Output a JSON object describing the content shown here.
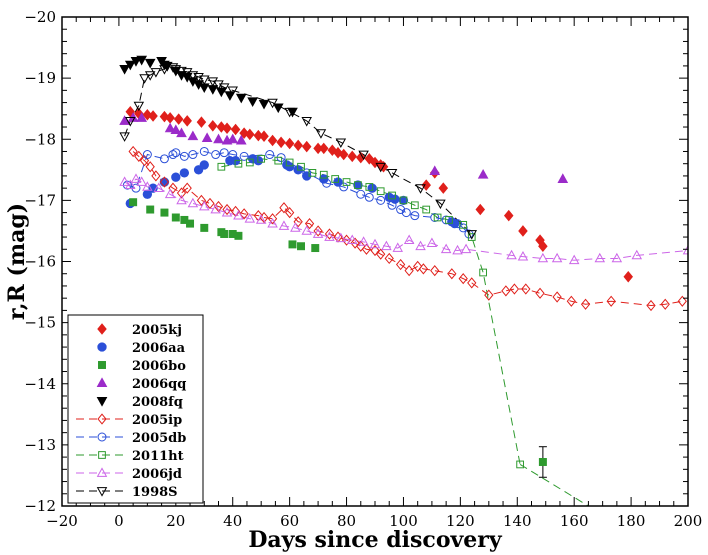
{
  "chart_data": {
    "type": "scatter",
    "title": "",
    "xlabel": "Days since discovery",
    "ylabel": "r,R (mag)",
    "xlim": [
      -20,
      200
    ],
    "ylim": [
      -20,
      -12
    ],
    "y_inverted": true,
    "x_major_ticks": [
      -20,
      0,
      20,
      40,
      60,
      80,
      100,
      120,
      140,
      160,
      180,
      200
    ],
    "y_major_ticks": [
      -20,
      -19,
      -18,
      -17,
      -16,
      -15,
      -14,
      -13,
      -12
    ],
    "x_tick_labels": [
      "−20",
      "0",
      "20",
      "40",
      "60",
      "80",
      "100",
      "120",
      "140",
      "160",
      "180",
      "200"
    ],
    "y_tick_labels": [
      "−20",
      "−19",
      "−18",
      "−17",
      "−16",
      "−15",
      "−14",
      "−13",
      "−12"
    ],
    "legend_position": "bottom-left",
    "series": [
      {
        "name": "2005kj",
        "marker": "diamond",
        "filled": true,
        "color": "#e0201b",
        "line": false,
        "x": [
          4,
          7,
          10,
          12,
          16,
          18,
          21,
          24,
          29,
          33,
          36,
          38,
          41,
          44,
          46,
          49,
          51,
          54,
          57,
          60,
          63,
          66,
          70,
          72,
          75,
          77,
          79,
          82,
          85,
          88,
          90,
          92,
          93,
          108,
          111,
          114,
          127,
          137,
          142,
          148,
          149,
          179
        ],
        "y": [
          -18.45,
          -18.42,
          -18.4,
          -18.38,
          -18.37,
          -18.35,
          -18.33,
          -18.3,
          -18.28,
          -18.22,
          -18.2,
          -18.18,
          -18.16,
          -18.1,
          -18.08,
          -18.06,
          -18.05,
          -17.98,
          -17.95,
          -17.93,
          -17.9,
          -17.88,
          -17.85,
          -17.85,
          -17.82,
          -17.78,
          -17.75,
          -17.72,
          -17.7,
          -17.68,
          -17.62,
          -17.58,
          -17.55,
          -17.25,
          -17.45,
          -17.2,
          -16.85,
          -16.75,
          -16.5,
          -16.35,
          -16.25,
          -15.75
        ]
      },
      {
        "name": "2006aa",
        "marker": "circle",
        "filled": true,
        "color": "#2b4fd8",
        "line": false,
        "x": [
          4,
          10,
          12,
          16,
          20,
          23,
          28,
          30,
          39,
          41,
          47,
          49,
          59,
          60,
          63,
          66,
          72,
          77,
          84,
          89,
          95,
          97,
          100,
          117,
          118
        ],
        "y": [
          -16.95,
          -17.1,
          -17.2,
          -17.3,
          -17.38,
          -17.45,
          -17.5,
          -17.58,
          -17.65,
          -17.65,
          -17.68,
          -17.65,
          -17.58,
          -17.55,
          -17.5,
          -17.4,
          -17.35,
          -17.3,
          -17.25,
          -17.2,
          -17.05,
          -17.02,
          -17.0,
          -16.65,
          -16.62
        ]
      },
      {
        "name": "2006bo",
        "marker": "square",
        "filled": true,
        "color": "#2e9a2e",
        "line": false,
        "x": [
          5,
          11,
          16,
          20,
          23,
          25,
          30,
          36,
          37,
          40,
          42,
          61,
          64,
          69,
          149
        ],
        "y": [
          -16.97,
          -16.85,
          -16.8,
          -16.72,
          -16.68,
          -16.62,
          -16.55,
          -16.48,
          -16.45,
          -16.45,
          -16.42,
          -16.28,
          -16.25,
          -16.22,
          -12.72
        ]
      },
      {
        "name": "2006qq",
        "marker": "triangle-up",
        "filled": true,
        "color": "#9b2bc9",
        "line": false,
        "x": [
          2,
          5,
          8,
          18,
          20,
          22,
          26,
          31,
          35,
          38,
          40,
          43,
          111,
          128,
          156
        ],
        "y": [
          -18.3,
          -18.35,
          -18.35,
          -18.18,
          -18.15,
          -18.1,
          -18.05,
          -18.02,
          -18.0,
          -17.98,
          -18.0,
          -17.98,
          -17.48,
          -17.42,
          -17.35
        ]
      },
      {
        "name": "2008fq",
        "marker": "triangle-down",
        "filled": true,
        "color": "#000000",
        "line": false,
        "x": [
          2,
          4,
          6,
          8,
          11,
          15,
          16,
          17,
          20,
          22,
          24,
          26,
          28,
          30,
          33,
          36,
          39,
          43,
          47,
          51,
          56,
          61
        ],
        "y": [
          -19.15,
          -19.22,
          -19.28,
          -19.3,
          -19.25,
          -19.28,
          -19.22,
          -19.2,
          -19.12,
          -19.05,
          -19.02,
          -18.95,
          -18.9,
          -18.85,
          -18.82,
          -18.78,
          -18.72,
          -18.68,
          -18.62,
          -18.58,
          -18.52,
          -18.45
        ]
      },
      {
        "name": "2005ip",
        "marker": "diamond",
        "filled": false,
        "color": "#e0201b",
        "line": true,
        "dash": "8,5",
        "x": [
          5,
          7,
          9,
          11,
          13,
          16,
          19,
          22,
          24,
          29,
          32,
          35,
          38,
          41,
          44,
          49,
          51,
          54,
          58,
          60,
          63,
          67,
          70,
          74,
          77,
          80,
          83,
          85,
          87,
          90,
          92,
          95,
          99,
          102,
          105,
          107,
          111,
          117,
          121,
          124,
          130,
          136,
          139,
          143,
          148,
          154,
          159,
          164,
          173,
          187,
          192,
          198
        ],
        "y": [
          -17.8,
          -17.72,
          -17.65,
          -17.55,
          -17.4,
          -17.3,
          -17.2,
          -17.12,
          -17.2,
          -17.0,
          -16.95,
          -16.9,
          -16.85,
          -16.82,
          -16.78,
          -16.75,
          -16.72,
          -16.7,
          -16.88,
          -16.8,
          -16.65,
          -16.62,
          -16.5,
          -16.45,
          -16.4,
          -16.35,
          -16.3,
          -16.25,
          -16.2,
          -16.18,
          -16.12,
          -16.05,
          -15.95,
          -15.85,
          -15.92,
          -15.88,
          -15.85,
          -15.8,
          -15.72,
          -15.65,
          -15.45,
          -15.52,
          -15.55,
          -15.55,
          -15.48,
          -15.42,
          -15.35,
          -15.3,
          -15.35,
          -15.28,
          -15.3,
          -15.35
        ]
      },
      {
        "name": "2005db",
        "marker": "circle",
        "filled": false,
        "color": "#2b4fd8",
        "line": true,
        "dash": "8,5",
        "x": [
          3,
          6,
          10,
          16,
          19,
          20,
          23,
          26,
          30,
          34,
          37,
          40,
          44,
          53,
          57,
          66,
          73,
          79,
          85,
          88,
          92,
          96,
          99,
          101,
          104,
          111,
          115,
          119,
          121,
          123
        ],
        "y": [
          -17.25,
          -17.2,
          -17.75,
          -17.68,
          -17.75,
          -17.78,
          -17.72,
          -17.75,
          -17.8,
          -17.75,
          -17.78,
          -17.75,
          -17.72,
          -17.75,
          -17.7,
          -17.45,
          -17.28,
          -17.22,
          -17.1,
          -17.05,
          -17.0,
          -16.92,
          -16.85,
          -16.8,
          -16.75,
          -16.72,
          -16.68,
          -16.62,
          -16.55,
          -16.45
        ]
      },
      {
        "name": "2011ht",
        "marker": "square",
        "filled": false,
        "color": "#2e9a2e",
        "line": true,
        "dash": "8,5",
        "x": [
          36,
          42,
          46,
          50,
          56,
          60,
          64,
          68,
          72,
          76,
          80,
          84,
          88,
          92,
          96,
          100,
          104,
          108,
          112,
          116,
          121,
          124,
          128,
          141
        ],
        "y": [
          -17.55,
          -17.6,
          -17.62,
          -17.68,
          -17.65,
          -17.62,
          -17.55,
          -17.45,
          -17.42,
          -17.35,
          -17.3,
          -17.25,
          -17.22,
          -17.15,
          -17.08,
          -17.0,
          -16.92,
          -16.85,
          -16.72,
          -16.68,
          -16.6,
          -16.4,
          -15.82,
          -12.68
        ],
        "line_extension": {
          "x": [
            141,
            165
          ],
          "y": [
            -12.68,
            -12.0
          ]
        }
      },
      {
        "name": "2006jd",
        "marker": "triangle-up",
        "filled": false,
        "color": "#cc66e8",
        "line": true,
        "dash": "8,5",
        "x": [
          2,
          4,
          6,
          8,
          10,
          14,
          18,
          22,
          26,
          30,
          34,
          38,
          42,
          46,
          50,
          54,
          58,
          62,
          66,
          70,
          74,
          78,
          82,
          86,
          90,
          94,
          98,
          102,
          106,
          110,
          115,
          119,
          122,
          138,
          142,
          149,
          154,
          160,
          169,
          175,
          182,
          200
        ],
        "y": [
          -17.3,
          -17.25,
          -17.35,
          -17.3,
          -17.22,
          -17.2,
          -17.1,
          -17.0,
          -16.95,
          -16.9,
          -16.85,
          -16.8,
          -16.75,
          -16.7,
          -16.68,
          -16.62,
          -16.58,
          -16.55,
          -16.5,
          -16.45,
          -16.4,
          -16.38,
          -16.35,
          -16.32,
          -16.28,
          -16.25,
          -16.22,
          -16.35,
          -16.25,
          -16.3,
          -16.2,
          -16.18,
          -16.2,
          -16.1,
          -16.08,
          -16.05,
          -16.05,
          -16.02,
          -16.05,
          -16.05,
          -16.1,
          -16.18
        ]
      },
      {
        "name": "1998S",
        "marker": "triangle-down",
        "filled": false,
        "color": "#000000",
        "line": true,
        "dash": "8,5",
        "x": [
          2,
          4,
          7,
          9,
          11,
          13,
          16,
          19,
          20,
          22,
          24,
          26,
          28,
          30,
          33,
          35,
          37,
          40,
          54,
          60,
          66,
          71,
          78,
          86,
          92,
          96,
          106,
          113,
          124
        ],
        "y": [
          -18.05,
          -18.3,
          -18.55,
          -19.0,
          -19.05,
          -19.1,
          -19.15,
          -19.18,
          -19.15,
          -19.12,
          -19.1,
          -19.05,
          -19.02,
          -18.98,
          -18.95,
          -18.9,
          -18.85,
          -18.8,
          -18.6,
          -18.45,
          -18.3,
          -18.1,
          -17.95,
          -17.75,
          -17.55,
          -17.45,
          -17.2,
          -16.95,
          -16.45
        ]
      }
    ],
    "error_bars": [
      {
        "series": "2006bo",
        "x": 149,
        "y": -12.72,
        "yerr": 0.25
      }
    ]
  }
}
